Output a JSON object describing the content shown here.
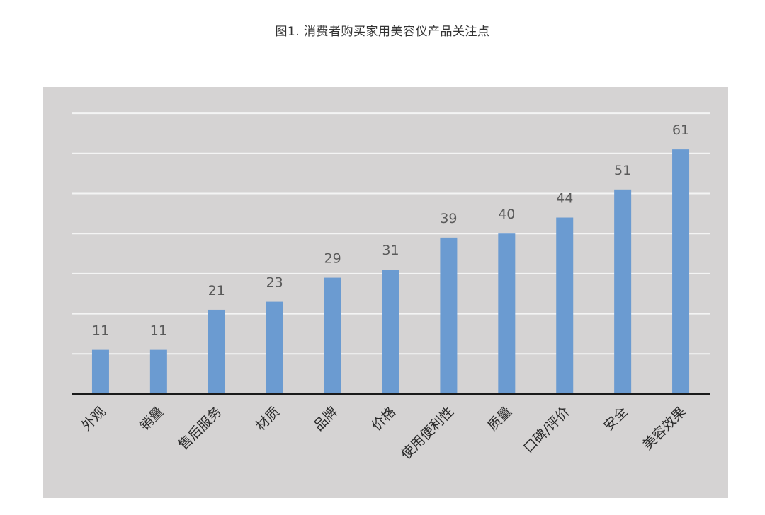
{
  "page": {
    "title": "图1. 消费者购买家用美容仪产品关注点"
  },
  "colors": {
    "bar": "#6b9bd1",
    "panel_background": "#d5d3d3",
    "gridline": "#f4f4f4",
    "axis": "#1a1a1a"
  },
  "chart_data": {
    "type": "bar",
    "title": "图1. 消费者购买家用美容仪产品关注点",
    "xlabel": "",
    "ylabel": "",
    "categories": [
      "外观",
      "销量",
      "售后服务",
      "材质",
      "品牌",
      "价格",
      "使用便利性",
      "质量",
      "口碑/评价",
      "安全",
      "美容效果"
    ],
    "values": [
      11,
      11,
      21,
      23,
      29,
      31,
      39,
      40,
      44,
      51,
      61
    ],
    "ylim": [
      0,
      70
    ],
    "gridline_step": 10,
    "grid": true,
    "legend": "none",
    "data_labels": true,
    "x_tick_labels_rotated": true
  }
}
